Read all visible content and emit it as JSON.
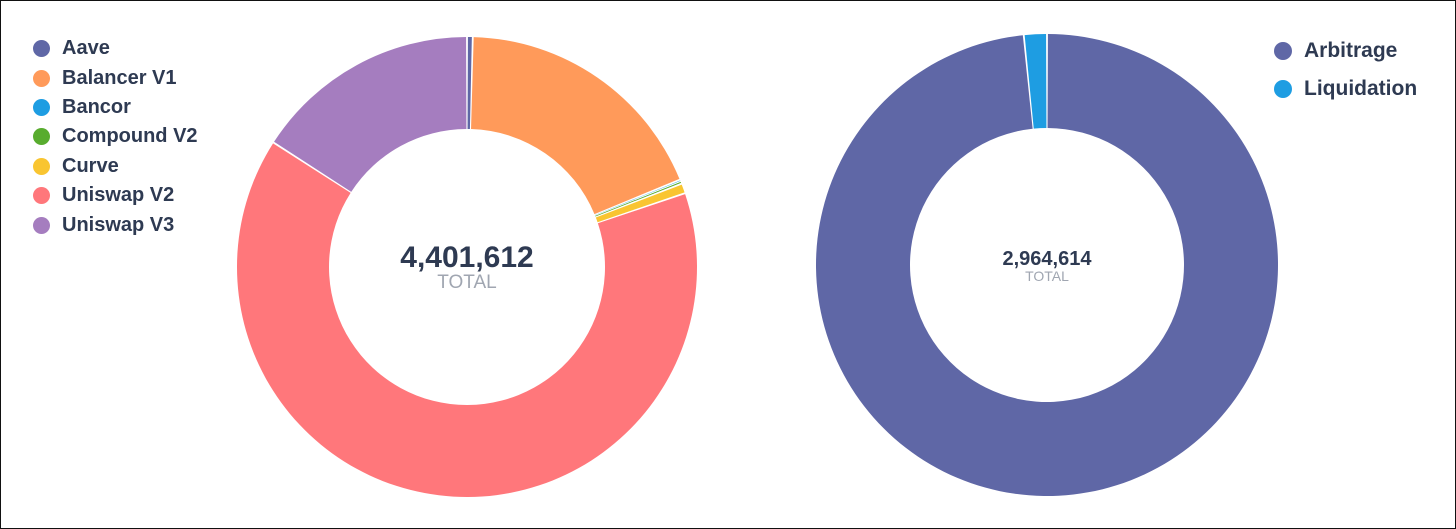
{
  "chart_data": [
    {
      "type": "pie",
      "donut": true,
      "center_value": "4,401,612",
      "center_label": "TOTAL",
      "legend_position": "top-left",
      "slices": [
        {
          "name": "Aave",
          "value": 17600,
          "color": "#5f67a6"
        },
        {
          "name": "Balancer V1",
          "value": 810000,
          "color": "#ff9a5a"
        },
        {
          "name": "Bancor",
          "value": 4400,
          "color": "#1e9de2"
        },
        {
          "name": "Compound V2",
          "value": 8800,
          "color": "#58ac2e"
        },
        {
          "name": "Curve",
          "value": 30800,
          "color": "#f9c531"
        },
        {
          "name": "Uniswap V2",
          "value": 2830000,
          "color": "#ff777b"
        },
        {
          "name": "Uniswap V3",
          "value": 700012,
          "color": "#a57dbf"
        }
      ]
    },
    {
      "type": "pie",
      "donut": true,
      "center_value": "2,964,614",
      "center_label": "TOTAL",
      "legend_position": "top-right",
      "slices": [
        {
          "name": "Arbitrage",
          "value": 2917000,
          "color": "#5f67a6"
        },
        {
          "name": "Liquidation",
          "value": 47614,
          "color": "#1e9de2"
        }
      ]
    }
  ]
}
